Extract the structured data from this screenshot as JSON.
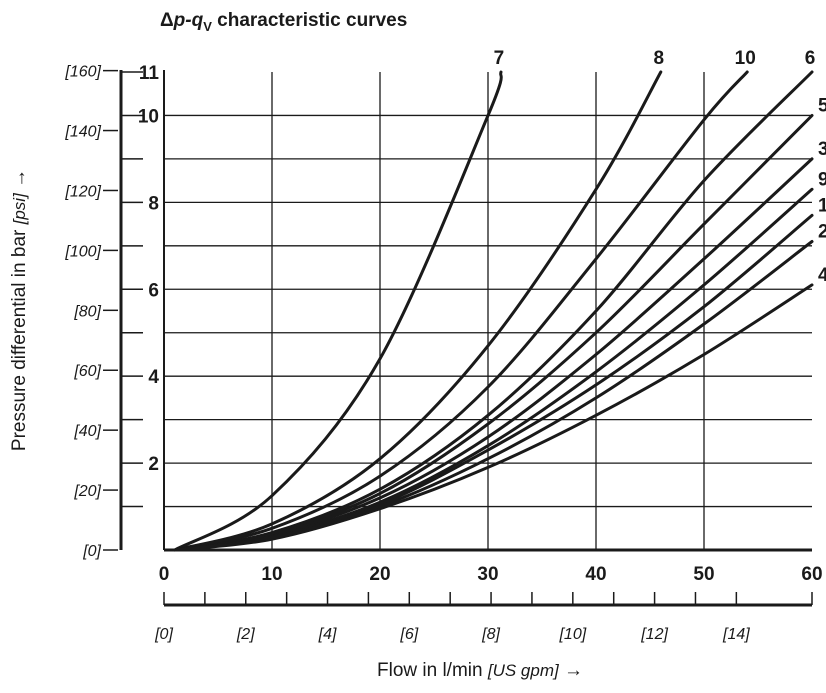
{
  "chart_data": {
    "type": "line",
    "title_prefix": "Δ",
    "title_p": "p",
    "title_dash": "-",
    "title_q": "q",
    "title_sub": "V",
    "title_rest": " characteristic curves",
    "xlabel": "Flow in l/min",
    "xlabel_unit": "[US gpm]",
    "xlabel_arrow": "→",
    "ylabel": "Pressure differential in bar",
    "ylabel_unit": "[psi]",
    "ylabel_arrow": "→",
    "x_ticks": [
      "0",
      "10",
      "20",
      "30",
      "40",
      "50",
      "60"
    ],
    "x_ticks_gpm": [
      "[0]",
      "[2]",
      "[4]",
      "[6]",
      "[8]",
      "[10]",
      "[12]",
      "[14]"
    ],
    "y_ticks_bar": [
      "2",
      "4",
      "6",
      "8",
      "10",
      "11"
    ],
    "y_ticks_psi": [
      "[0]",
      "[20]",
      "[40]",
      "[60]",
      "[80]",
      "[100]",
      "[120]",
      "[140]",
      "[160]"
    ],
    "xlim": [
      0,
      60
    ],
    "ylim": [
      0,
      11
    ],
    "grid": true,
    "series": [
      {
        "name": "7",
        "points": [
          [
            1,
            0
          ],
          [
            10,
            1.25
          ],
          [
            20,
            4.4
          ],
          [
            30,
            10
          ],
          [
            31.2,
            11
          ]
        ]
      },
      {
        "name": "8",
        "points": [
          [
            1,
            0
          ],
          [
            10,
            0.6
          ],
          [
            20,
            2.1
          ],
          [
            30,
            4.7
          ],
          [
            40,
            8.3
          ],
          [
            46,
            11
          ]
        ]
      },
      {
        "name": "10",
        "points": [
          [
            1,
            0
          ],
          [
            10,
            0.5
          ],
          [
            20,
            1.7
          ],
          [
            30,
            3.75
          ],
          [
            40,
            6.7
          ],
          [
            50,
            9.9
          ],
          [
            54,
            11
          ]
        ]
      },
      {
        "name": "6",
        "points": [
          [
            1,
            0
          ],
          [
            10,
            0.4
          ],
          [
            20,
            1.4
          ],
          [
            30,
            3.1
          ],
          [
            40,
            5.5
          ],
          [
            50,
            8.5
          ],
          [
            60,
            11
          ]
        ]
      },
      {
        "name": "5",
        "points": [
          [
            1,
            0
          ],
          [
            10,
            0.38
          ],
          [
            20,
            1.3
          ],
          [
            30,
            2.9
          ],
          [
            40,
            5.0
          ],
          [
            50,
            7.5
          ],
          [
            60,
            10
          ]
        ]
      },
      {
        "name": "3",
        "points": [
          [
            1,
            0
          ],
          [
            10,
            0.35
          ],
          [
            20,
            1.2
          ],
          [
            30,
            2.6
          ],
          [
            40,
            4.5
          ],
          [
            50,
            6.7
          ],
          [
            60,
            9
          ]
        ]
      },
      {
        "name": "9",
        "points": [
          [
            1,
            0
          ],
          [
            10,
            0.32
          ],
          [
            20,
            1.1
          ],
          [
            30,
            2.4
          ],
          [
            40,
            4.1
          ],
          [
            50,
            6.1
          ],
          [
            60,
            8.3
          ]
        ]
      },
      {
        "name": "1",
        "points": [
          [
            1,
            0
          ],
          [
            10,
            0.3
          ],
          [
            20,
            1.05
          ],
          [
            30,
            2.3
          ],
          [
            40,
            3.8
          ],
          [
            50,
            5.6
          ],
          [
            60,
            7.7
          ]
        ]
      },
      {
        "name": "2",
        "points": [
          [
            1,
            0
          ],
          [
            10,
            0.28
          ],
          [
            20,
            1.0
          ],
          [
            30,
            2.1
          ],
          [
            40,
            3.5
          ],
          [
            50,
            5.2
          ],
          [
            60,
            7.1
          ]
        ]
      },
      {
        "name": "4",
        "points": [
          [
            1,
            0
          ],
          [
            10,
            0.25
          ],
          [
            20,
            0.95
          ],
          [
            30,
            1.9
          ],
          [
            40,
            3.1
          ],
          [
            50,
            4.5
          ],
          [
            60,
            6.1
          ]
        ]
      }
    ]
  }
}
